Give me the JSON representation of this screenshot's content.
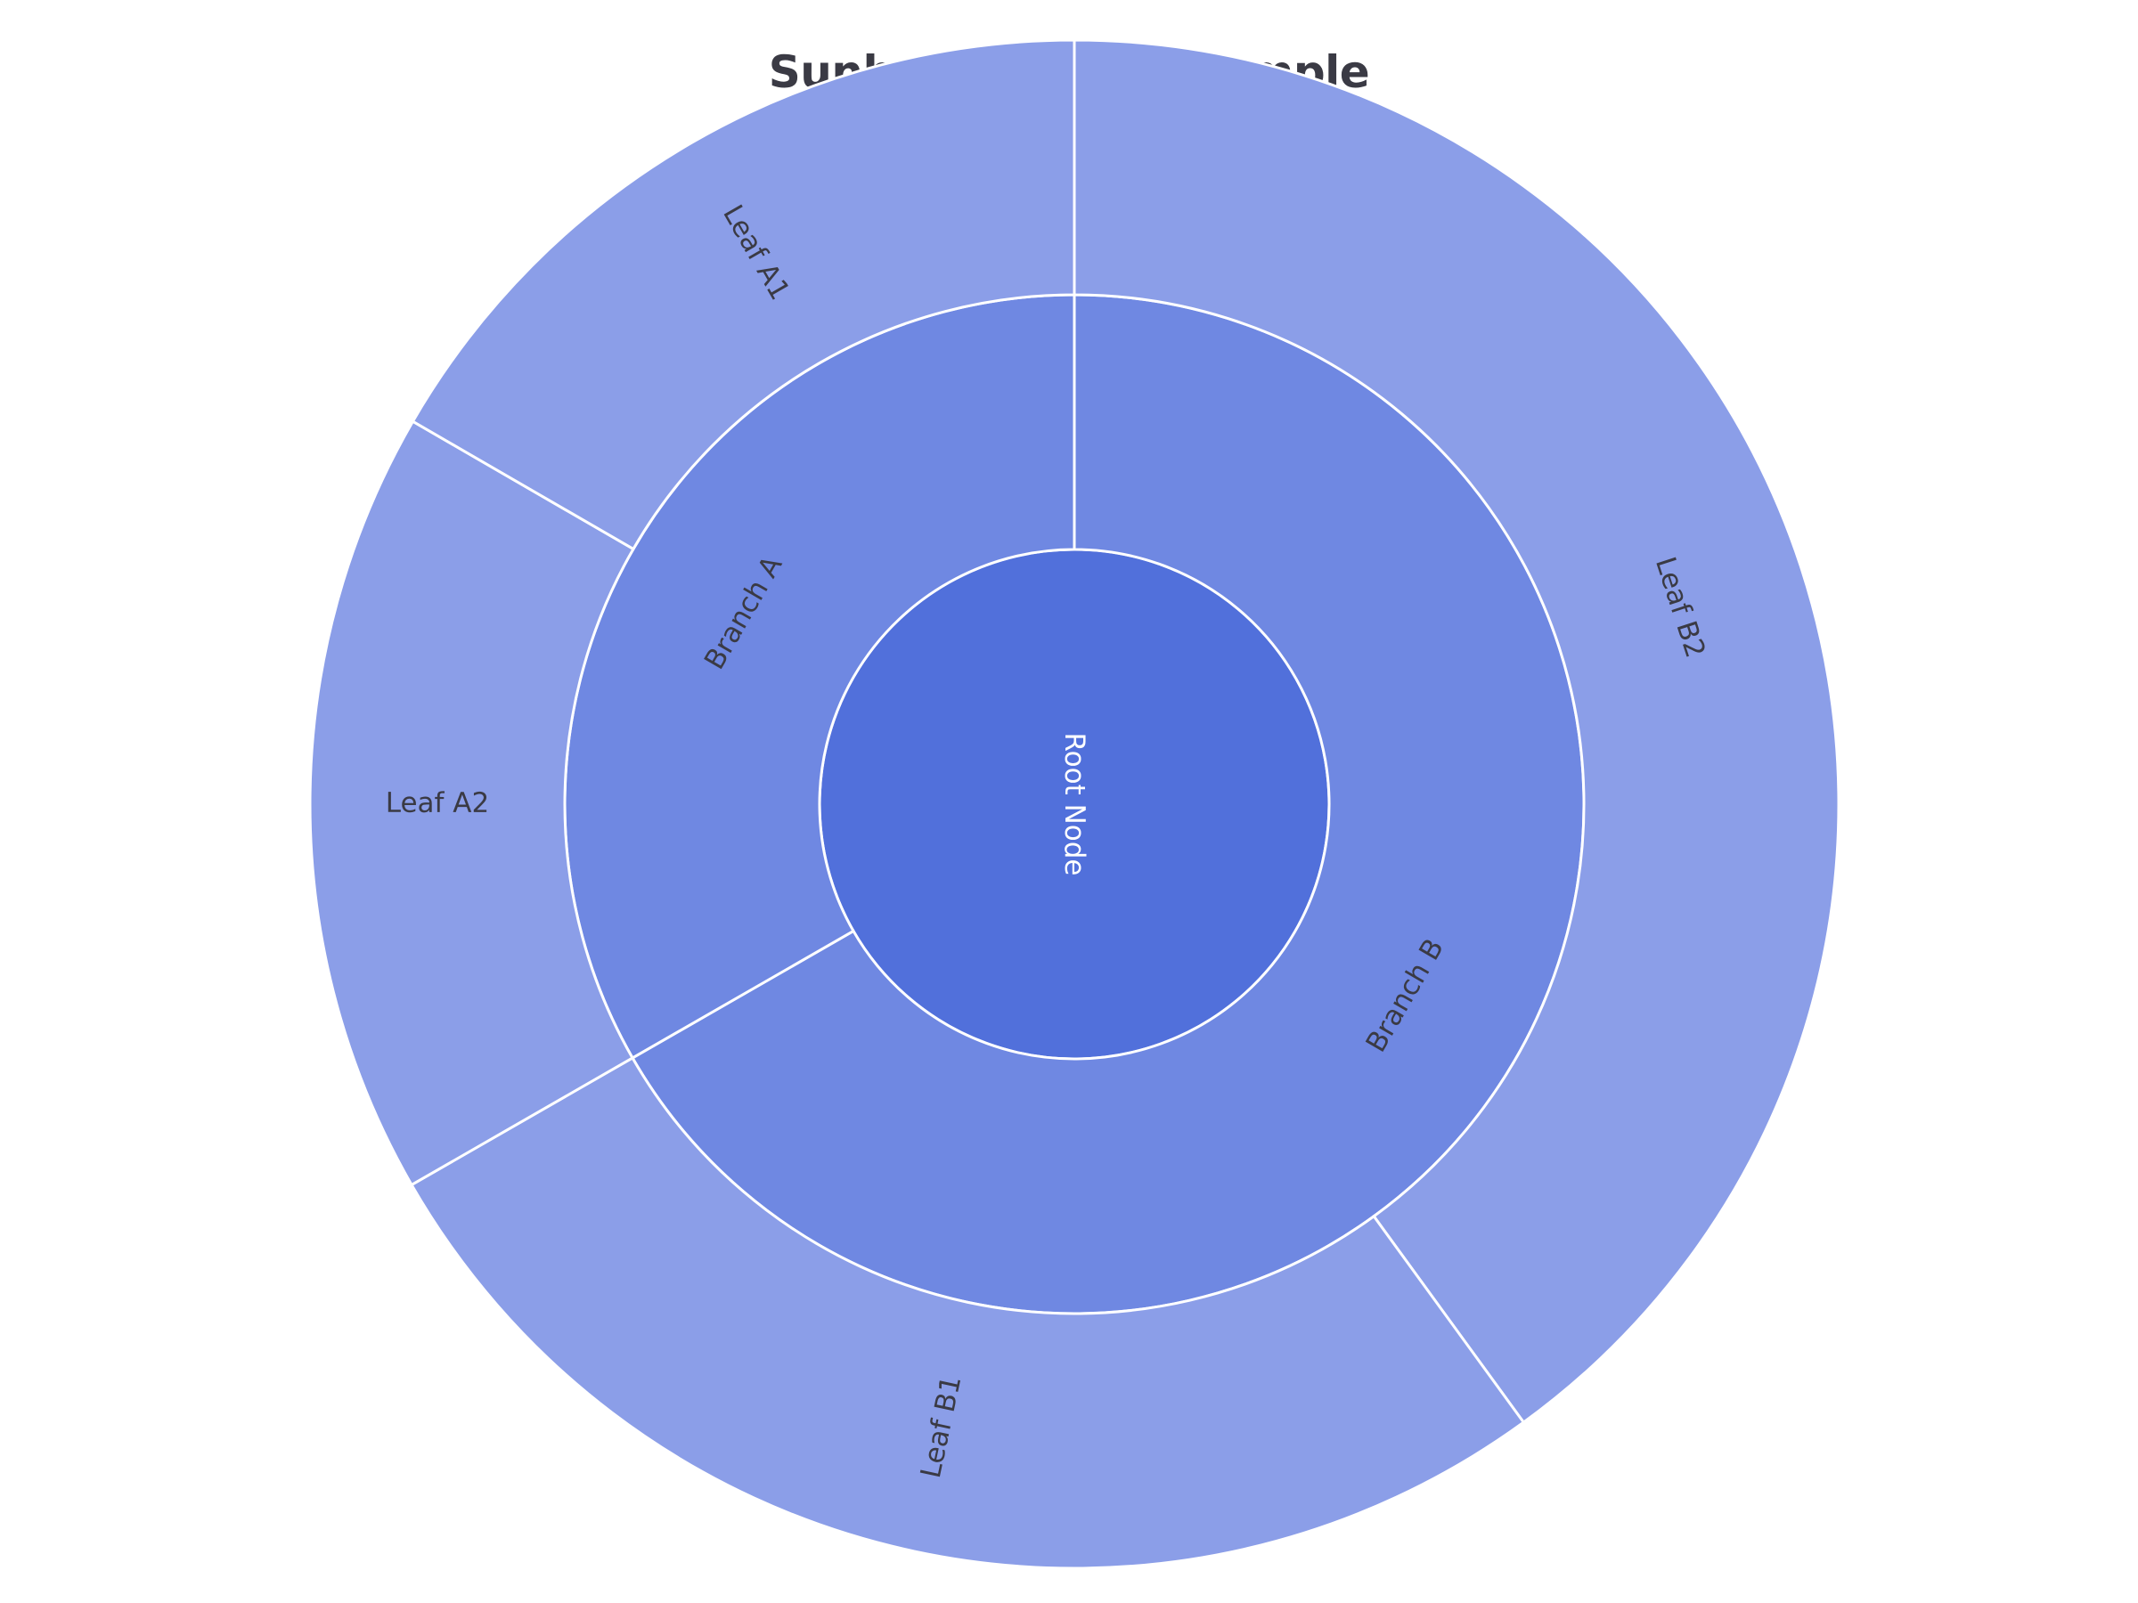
{
  "chart_data": {
    "type": "sunburst",
    "title": "Sunburst Chart Example",
    "colors": {
      "root": "#5170db",
      "branch": "#6f88e2",
      "leaf": "#8b9ee8",
      "border": "#ffffff",
      "label_dark": "#3a3a44",
      "label_light": "#ffffff"
    },
    "nodes": [
      {
        "id": "root",
        "label": "Root Node",
        "parent": "",
        "value": 100
      },
      {
        "id": "branch-a",
        "label": "Branch A",
        "parent": "root",
        "value": 33.3
      },
      {
        "id": "branch-b",
        "label": "Branch B",
        "parent": "root",
        "value": 66.7
      },
      {
        "id": "leaf-a1",
        "label": "Leaf A1",
        "parent": "branch-a",
        "value": 16.7
      },
      {
        "id": "leaf-a2",
        "label": "Leaf A2",
        "parent": "branch-a",
        "value": 16.7
      },
      {
        "id": "leaf-b1",
        "label": "Leaf B1",
        "parent": "branch-b",
        "value": 26.7
      },
      {
        "id": "leaf-b2",
        "label": "Leaf B2",
        "parent": "branch-b",
        "value": 40
      }
    ],
    "order": {
      "root": [
        "branch-b",
        "branch-a"
      ],
      "branch-a": [
        "leaf-a2",
        "leaf-a1"
      ],
      "branch-b": [
        "leaf-b2",
        "leaf-b1"
      ]
    }
  }
}
